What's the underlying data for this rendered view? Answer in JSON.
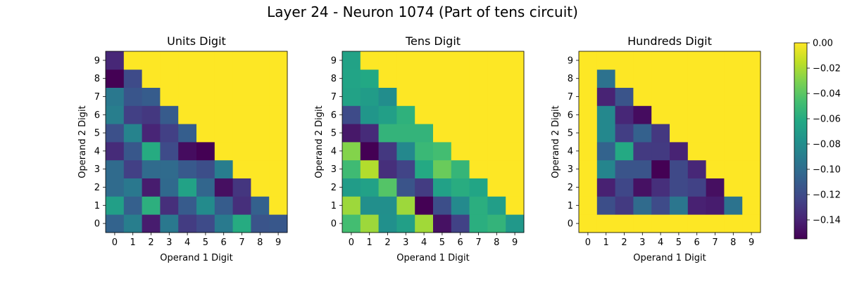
{
  "chart_data": {
    "type": "heatmap",
    "suptitle": "Layer 24 - Neuron 1074 (Part of tens circuit)",
    "colormap": "viridis",
    "vmin": -0.155,
    "vmax": 0.0,
    "colorbar": {
      "ticks": [
        0.0,
        -0.02,
        -0.04,
        -0.06,
        -0.08,
        -0.1,
        -0.12,
        -0.14
      ],
      "tick_labels": [
        "0.00",
        "−0.02",
        "−0.04",
        "−0.06",
        "−0.08",
        "−0.10",
        "−0.12",
        "−0.14"
      ]
    },
    "x_categories": [
      "0",
      "1",
      "2",
      "3",
      "4",
      "5",
      "6",
      "7",
      "8",
      "9"
    ],
    "y_categories": [
      "0",
      "1",
      "2",
      "3",
      "4",
      "5",
      "6",
      "7",
      "8",
      "9"
    ],
    "panels": [
      {
        "title": "Units Digit",
        "xlabel": "Operand 1 Digit",
        "ylabel": "Operand 2 Digit",
        "values": [
          [
            -0.106,
            -0.089,
            -0.143,
            -0.093,
            -0.128,
            -0.12,
            -0.092,
            -0.06,
            -0.115,
            -0.113
          ],
          [
            -0.068,
            -0.108,
            -0.057,
            -0.134,
            -0.111,
            -0.081,
            -0.11,
            -0.134,
            -0.107,
            0.0
          ],
          [
            -0.101,
            -0.093,
            -0.143,
            -0.102,
            -0.066,
            -0.104,
            -0.149,
            -0.131,
            0.0,
            0.0
          ],
          [
            -0.101,
            -0.126,
            -0.101,
            -0.101,
            -0.112,
            -0.118,
            -0.09,
            0.0,
            0.0,
            0.0
          ],
          [
            -0.136,
            -0.113,
            -0.06,
            -0.12,
            -0.15,
            -0.155,
            0.0,
            0.0,
            0.0,
            0.0
          ],
          [
            -0.117,
            -0.086,
            -0.139,
            -0.126,
            -0.109,
            0.0,
            0.0,
            0.0,
            0.0,
            0.0
          ],
          [
            -0.089,
            -0.126,
            -0.13,
            -0.111,
            0.0,
            0.0,
            0.0,
            0.0,
            0.0,
            0.0
          ],
          [
            -0.093,
            -0.114,
            -0.11,
            0.0,
            0.0,
            0.0,
            0.0,
            0.0,
            0.0,
            0.0
          ],
          [
            -0.155,
            -0.12,
            0.0,
            0.0,
            0.0,
            0.0,
            0.0,
            0.0,
            0.0,
            0.0
          ],
          [
            -0.138,
            0.0,
            0.0,
            0.0,
            0.0,
            0.0,
            0.0,
            0.0,
            0.0,
            0.0
          ]
        ]
      },
      {
        "title": "Tens Digit",
        "xlabel": "Operand 1 Digit",
        "ylabel": "Operand 2 Digit",
        "values": [
          [
            -0.047,
            -0.023,
            -0.078,
            -0.068,
            -0.022,
            -0.148,
            -0.125,
            -0.058,
            -0.054,
            -0.073
          ],
          [
            -0.023,
            -0.079,
            -0.079,
            -0.023,
            -0.155,
            -0.118,
            -0.082,
            -0.058,
            -0.069,
            0.0
          ],
          [
            -0.07,
            -0.067,
            -0.042,
            -0.115,
            -0.128,
            -0.067,
            -0.059,
            -0.064,
            0.0,
            0.0
          ],
          [
            -0.049,
            -0.018,
            -0.134,
            -0.124,
            -0.061,
            -0.036,
            -0.053,
            0.0,
            0.0,
            0.0
          ],
          [
            -0.029,
            -0.155,
            -0.13,
            -0.083,
            -0.051,
            -0.047,
            0.0,
            0.0,
            0.0,
            0.0
          ],
          [
            -0.145,
            -0.136,
            -0.054,
            -0.054,
            -0.054,
            0.0,
            0.0,
            0.0,
            0.0,
            0.0
          ],
          [
            -0.12,
            -0.074,
            -0.068,
            -0.056,
            0.0,
            0.0,
            0.0,
            0.0,
            0.0,
            0.0
          ],
          [
            -0.066,
            -0.07,
            -0.08,
            0.0,
            0.0,
            0.0,
            0.0,
            0.0,
            0.0,
            0.0
          ],
          [
            -0.065,
            -0.062,
            0.0,
            0.0,
            0.0,
            0.0,
            0.0,
            0.0,
            0.0,
            0.0
          ],
          [
            -0.066,
            0.0,
            0.0,
            0.0,
            0.0,
            0.0,
            0.0,
            0.0,
            0.0,
            0.0
          ]
        ]
      },
      {
        "title": "Hundreds Digit",
        "xlabel": "Operand 1 Digit",
        "ylabel": "Operand 2 Digit",
        "values": [
          [
            0.0,
            0.0,
            0.0,
            0.0,
            0.0,
            0.0,
            0.0,
            0.0,
            0.0,
            0.0
          ],
          [
            0.0,
            -0.118,
            -0.129,
            -0.101,
            -0.12,
            -0.094,
            -0.141,
            -0.143,
            -0.096,
            0.0
          ],
          [
            0.0,
            -0.141,
            -0.122,
            -0.148,
            -0.134,
            -0.121,
            -0.125,
            -0.149,
            0.0,
            0.0
          ],
          [
            0.0,
            -0.085,
            -0.115,
            -0.115,
            -0.155,
            -0.121,
            -0.138,
            0.0,
            0.0,
            0.0
          ],
          [
            0.0,
            -0.106,
            -0.061,
            -0.129,
            -0.129,
            -0.14,
            0.0,
            0.0,
            0.0,
            0.0
          ],
          [
            0.0,
            -0.083,
            -0.127,
            -0.107,
            -0.13,
            0.0,
            0.0,
            0.0,
            0.0,
            0.0
          ],
          [
            0.0,
            -0.083,
            -0.138,
            -0.15,
            0.0,
            0.0,
            0.0,
            0.0,
            0.0,
            0.0
          ],
          [
            0.0,
            -0.14,
            -0.115,
            0.0,
            0.0,
            0.0,
            0.0,
            0.0,
            0.0,
            0.0
          ],
          [
            0.0,
            -0.097,
            0.0,
            0.0,
            0.0,
            0.0,
            0.0,
            0.0,
            0.0,
            0.0
          ],
          [
            0.0,
            0.0,
            0.0,
            0.0,
            0.0,
            0.0,
            0.0,
            0.0,
            0.0,
            0.0
          ]
        ]
      }
    ]
  }
}
